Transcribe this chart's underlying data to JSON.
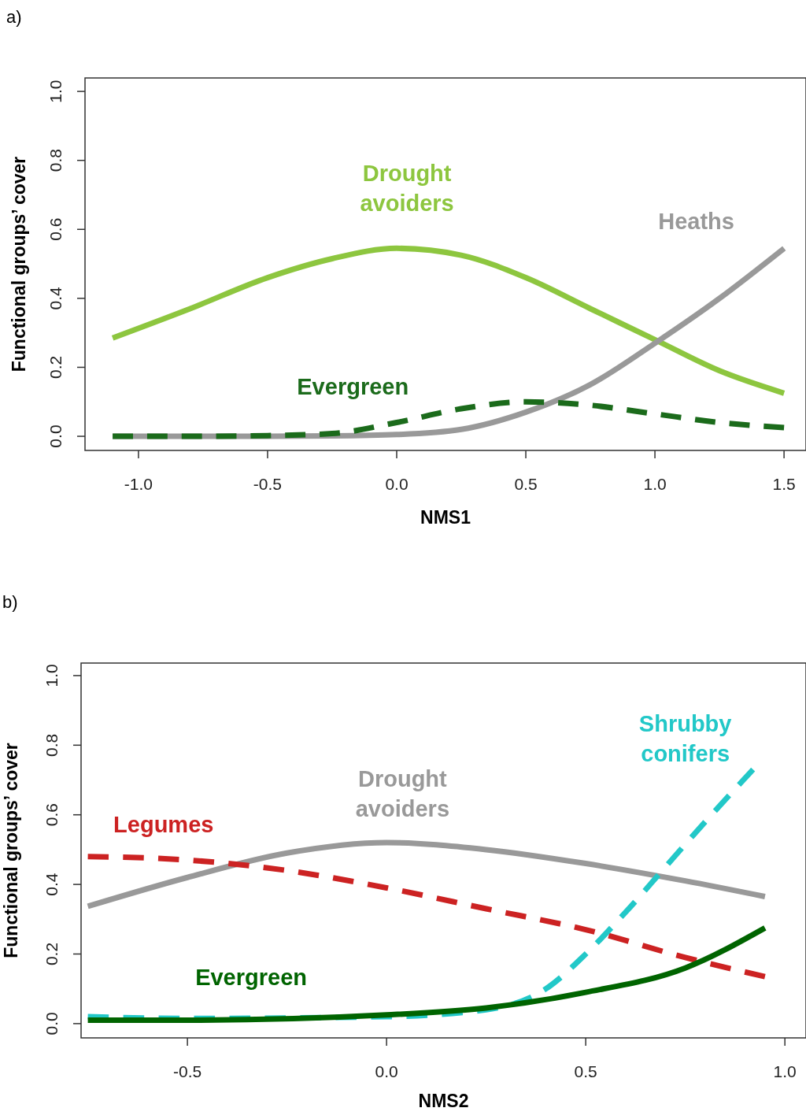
{
  "chart_data": [
    {
      "type": "line",
      "annotations": [
        "a)"
      ],
      "xlabel": "NMS1",
      "ylabel": "Functional groups’ cover",
      "xlim": [
        -1.207,
        1.585
      ],
      "ylim": [
        -0.041,
        1.039
      ],
      "xticks": [
        {
          "value": -1,
          "label": "-1.0"
        },
        {
          "value": -0.5,
          "label": "-0.5"
        },
        {
          "value": 0,
          "label": "0.0"
        },
        {
          "value": 0.5,
          "label": "0.5"
        },
        {
          "value": 1,
          "label": "1.0"
        },
        {
          "value": 1.5,
          "label": "1.5"
        }
      ],
      "yticks": [
        {
          "value": 0,
          "label": "0.0"
        },
        {
          "value": 0.2,
          "label": "0.2"
        },
        {
          "value": 0.4,
          "label": "0.4"
        },
        {
          "value": 0.6,
          "label": "0.6"
        },
        {
          "value": 0.8,
          "label": "0.8"
        },
        {
          "value": 1,
          "label": "1.0"
        }
      ],
      "x": [
        -1.1,
        -0.8,
        -0.5,
        -0.25,
        0,
        0.25,
        0.5,
        0.75,
        1,
        1.25,
        1.5
      ],
      "series": [
        {
          "name": "Drought avoiders",
          "color": "#8dc63f",
          "line_style": "solid",
          "values": [
            0.285,
            0.37,
            0.46,
            0.515,
            0.545,
            0.525,
            0.46,
            0.37,
            0.28,
            0.19,
            0.125
          ]
        },
        {
          "name": "Heaths",
          "color": "#999999",
          "line_style": "solid",
          "values": [
            0,
            0,
            0,
            0.001,
            0.005,
            0.02,
            0.07,
            0.15,
            0.27,
            0.4,
            0.545
          ]
        },
        {
          "name": "Evergreen",
          "color": "#1b6b1b",
          "line_style": "dashed",
          "values": [
            0,
            0,
            0.002,
            0.008,
            0.04,
            0.08,
            0.1,
            0.09,
            0.065,
            0.04,
            0.025
          ]
        }
      ]
    },
    {
      "type": "line",
      "annotations": [
        "b)"
      ],
      "xlabel": "NMS2",
      "ylabel": "Functional groups’ cover",
      "xlim": [
        -0.767,
        1.053
      ],
      "ylim": [
        -0.041,
        1.036
      ],
      "xticks": [
        {
          "value": -0.5,
          "label": "-0.5"
        },
        {
          "value": 0,
          "label": "0.0"
        },
        {
          "value": 0.5,
          "label": "0.5"
        },
        {
          "value": 1,
          "label": "1.0"
        }
      ],
      "yticks": [
        {
          "value": 0,
          "label": "0.0"
        },
        {
          "value": 0.2,
          "label": "0.2"
        },
        {
          "value": 0.4,
          "label": "0.4"
        },
        {
          "value": 0.6,
          "label": "0.6"
        },
        {
          "value": 0.8,
          "label": "0.8"
        },
        {
          "value": 1,
          "label": "1.0"
        }
      ],
      "series": [
        {
          "name": "Drought avoiders",
          "color": "#999999",
          "line_style": "solid",
          "x": [
            -0.75,
            -0.5,
            -0.25,
            0,
            0.25,
            0.5,
            0.75,
            0.95
          ],
          "values": [
            0.337,
            0.42,
            0.49,
            0.52,
            0.5,
            0.46,
            0.41,
            0.365
          ]
        },
        {
          "name": "Legumes",
          "color": "#cc2222",
          "line_style": "dashed",
          "x": [
            -0.75,
            -0.5,
            -0.25,
            0,
            0.25,
            0.5,
            0.75,
            0.95
          ],
          "values": [
            0.48,
            0.47,
            0.44,
            0.39,
            0.33,
            0.27,
            0.19,
            0.135
          ]
        },
        {
          "name": "Shrubby conifers",
          "color": "#22c8c8",
          "line_style": "dashed",
          "x": [
            -0.75,
            -0.5,
            0,
            0.25,
            0.4,
            0.5,
            0.6,
            0.7,
            0.8,
            0.92
          ],
          "values": [
            0.02,
            0.015,
            0.02,
            0.04,
            0.1,
            0.2,
            0.32,
            0.45,
            0.58,
            0.73
          ]
        },
        {
          "name": "Evergreen",
          "color": "#006400",
          "line_style": "solid",
          "x": [
            -0.75,
            -0.5,
            0,
            0.25,
            0.5,
            0.75,
            0.95
          ],
          "values": [
            0.01,
            0.01,
            0.025,
            0.045,
            0.09,
            0.16,
            0.275
          ]
        }
      ]
    }
  ]
}
